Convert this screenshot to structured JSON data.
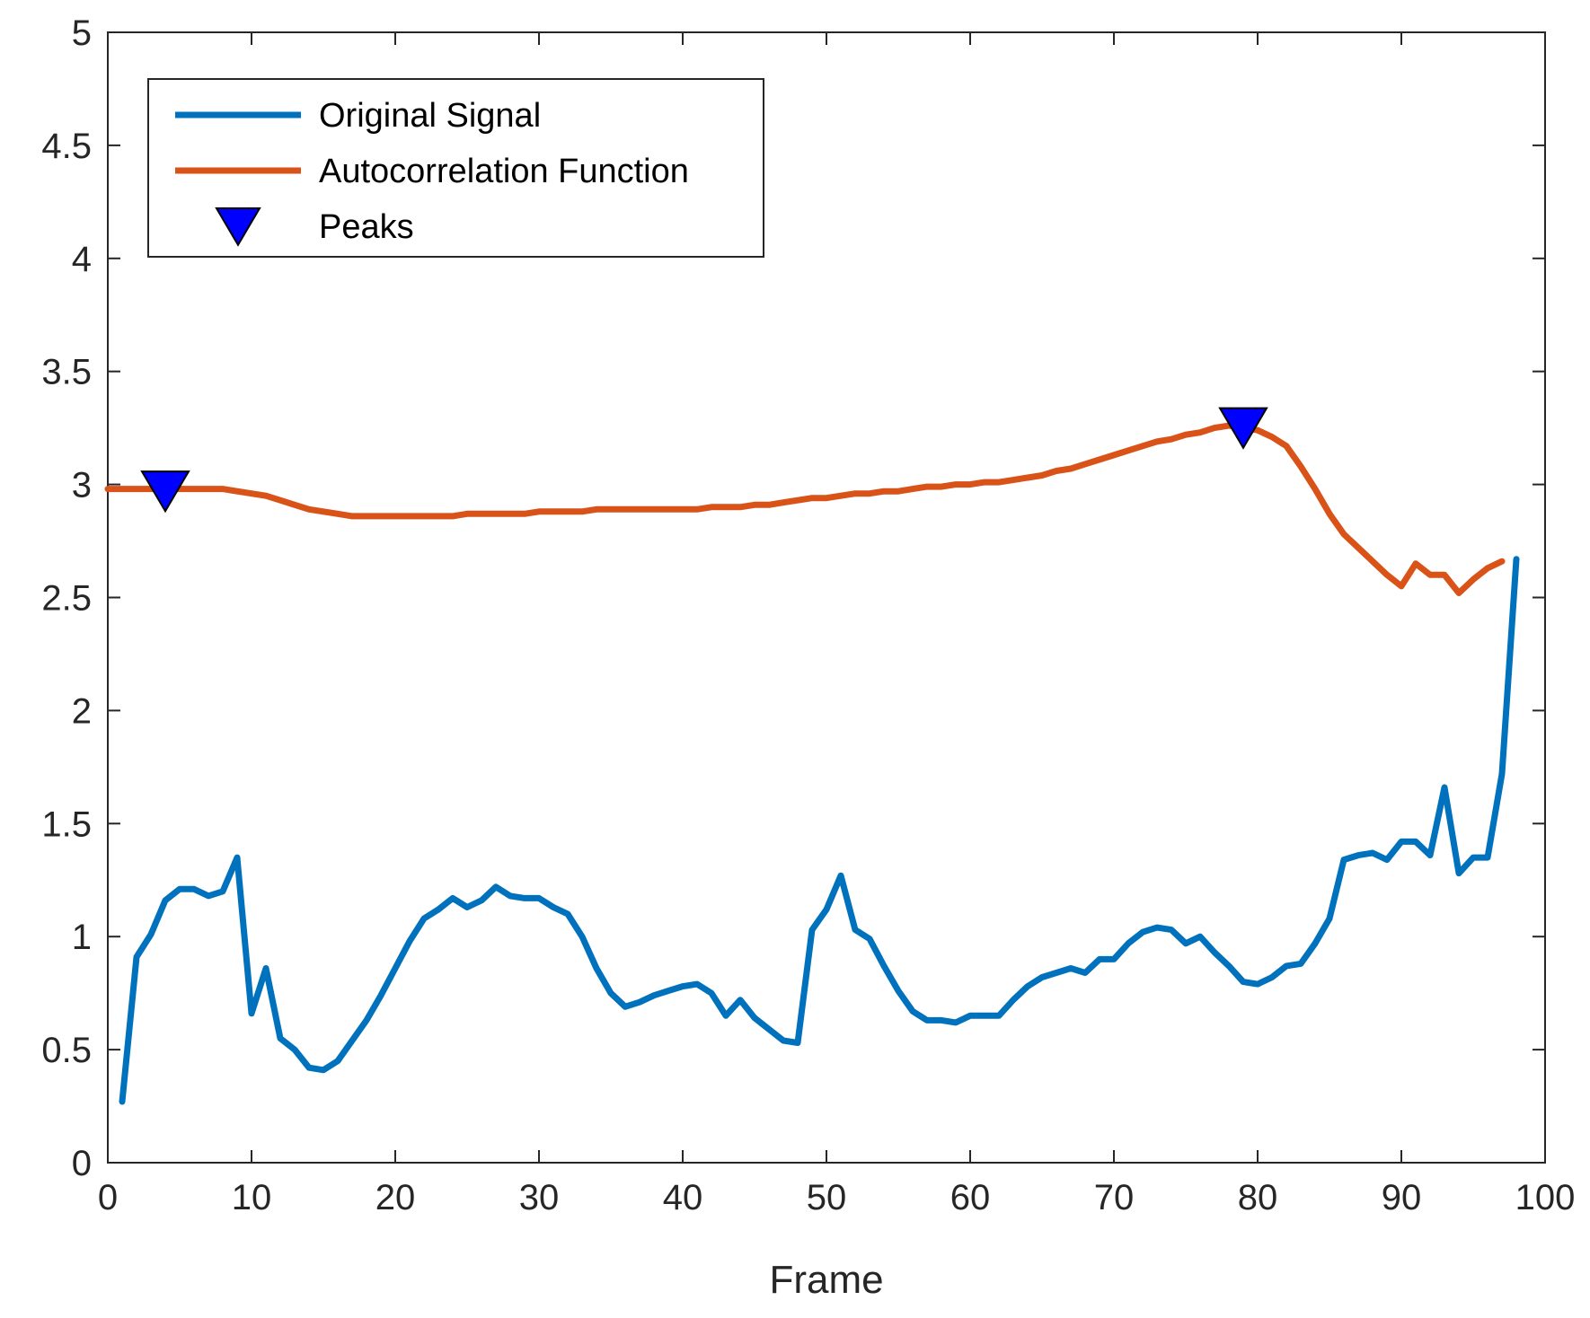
{
  "chart_data": {
    "type": "line",
    "title": "",
    "xlabel": "Frame",
    "ylabel": "",
    "xlim": [
      0,
      100
    ],
    "ylim": [
      0,
      5
    ],
    "xticks": [
      0,
      10,
      20,
      30,
      40,
      50,
      60,
      70,
      80,
      90,
      100
    ],
    "xtick_labels": [
      "0",
      "10",
      "20",
      "30",
      "40",
      "50",
      "60",
      "70",
      "80",
      "90",
      "100"
    ],
    "yticks": [
      0,
      0.5,
      1,
      1.5,
      2,
      2.5,
      3,
      3.5,
      4,
      4.5,
      5
    ],
    "ytick_labels": [
      "0",
      "0.5",
      "1",
      "1.5",
      "2",
      "2.5",
      "3",
      "3.5",
      "4",
      "4.5",
      "5"
    ],
    "grid": false,
    "legend_position": "top-left",
    "series": [
      {
        "name": "Original Signal",
        "color": "#0072BD",
        "x": [
          1,
          2,
          3,
          4,
          5,
          6,
          7,
          8,
          9,
          10,
          11,
          12,
          13,
          14,
          15,
          16,
          17,
          18,
          19,
          20,
          21,
          22,
          23,
          24,
          25,
          26,
          27,
          28,
          29,
          30,
          31,
          32,
          33,
          34,
          35,
          36,
          37,
          38,
          39,
          40,
          41,
          42,
          43,
          44,
          45,
          46,
          47,
          48,
          49,
          50,
          51,
          52,
          53,
          54,
          55,
          56,
          57,
          58,
          59,
          60,
          61,
          62,
          63,
          64,
          65,
          66,
          67,
          68,
          69,
          70,
          71,
          72,
          73,
          74,
          75,
          76,
          77,
          78,
          79,
          80,
          81,
          82,
          83,
          84,
          85,
          86,
          87,
          88,
          89,
          90,
          91,
          92,
          93,
          94,
          95,
          96,
          97,
          98
        ],
        "y": [
          0.27,
          0.91,
          1.01,
          1.16,
          1.21,
          1.21,
          1.18,
          1.2,
          1.35,
          0.66,
          0.86,
          0.55,
          0.5,
          0.42,
          0.41,
          0.45,
          0.54,
          0.63,
          0.74,
          0.86,
          0.98,
          1.08,
          1.12,
          1.17,
          1.13,
          1.16,
          1.22,
          1.18,
          1.17,
          1.17,
          1.13,
          1.1,
          1.0,
          0.86,
          0.75,
          0.69,
          0.71,
          0.74,
          0.76,
          0.78,
          0.79,
          0.75,
          0.65,
          0.72,
          0.64,
          0.59,
          0.54,
          0.53,
          1.03,
          1.12,
          1.27,
          1.03,
          0.99,
          0.87,
          0.76,
          0.67,
          0.63,
          0.63,
          0.62,
          0.65,
          0.65,
          0.65,
          0.72,
          0.78,
          0.82,
          0.84,
          0.86,
          0.84,
          0.9,
          0.9,
          0.97,
          1.02,
          1.04,
          1.03,
          0.97,
          1.0,
          0.93,
          0.87,
          0.8,
          0.79,
          0.82,
          0.87,
          0.88,
          0.97,
          1.08,
          1.34,
          1.36,
          1.37,
          1.34,
          1.42,
          1.42,
          1.36,
          1.66,
          1.28,
          1.35,
          1.35,
          1.72,
          2.67
        ]
      },
      {
        "name": "Autocorrelation Function",
        "color": "#D95319",
        "x": [
          0,
          1,
          2,
          3,
          4,
          5,
          6,
          7,
          8,
          9,
          10,
          11,
          12,
          13,
          14,
          15,
          16,
          17,
          18,
          19,
          20,
          21,
          22,
          23,
          24,
          25,
          26,
          27,
          28,
          29,
          30,
          31,
          32,
          33,
          34,
          35,
          36,
          37,
          38,
          39,
          40,
          41,
          42,
          43,
          44,
          45,
          46,
          47,
          48,
          49,
          50,
          51,
          52,
          53,
          54,
          55,
          56,
          57,
          58,
          59,
          60,
          61,
          62,
          63,
          64,
          65,
          66,
          67,
          68,
          69,
          70,
          71,
          72,
          73,
          74,
          75,
          76,
          77,
          78,
          79,
          80,
          81,
          82,
          83,
          84,
          85,
          86,
          87,
          88,
          89,
          90,
          91,
          92,
          93,
          94,
          95,
          96,
          97
        ],
        "y": [
          2.98,
          2.98,
          2.98,
          2.98,
          2.98,
          2.98,
          2.98,
          2.98,
          2.98,
          2.97,
          2.96,
          2.95,
          2.93,
          2.91,
          2.89,
          2.88,
          2.87,
          2.86,
          2.86,
          2.86,
          2.86,
          2.86,
          2.86,
          2.86,
          2.86,
          2.87,
          2.87,
          2.87,
          2.87,
          2.87,
          2.88,
          2.88,
          2.88,
          2.88,
          2.89,
          2.89,
          2.89,
          2.89,
          2.89,
          2.89,
          2.89,
          2.89,
          2.9,
          2.9,
          2.9,
          2.91,
          2.91,
          2.92,
          2.93,
          2.94,
          2.94,
          2.95,
          2.96,
          2.96,
          2.97,
          2.97,
          2.98,
          2.99,
          2.99,
          3.0,
          3.0,
          3.01,
          3.01,
          3.02,
          3.03,
          3.04,
          3.06,
          3.07,
          3.09,
          3.11,
          3.13,
          3.15,
          3.17,
          3.19,
          3.2,
          3.22,
          3.23,
          3.25,
          3.26,
          3.25,
          3.24,
          3.21,
          3.17,
          3.08,
          2.98,
          2.87,
          2.78,
          2.72,
          2.66,
          2.6,
          2.55,
          2.65,
          2.6,
          2.6,
          2.52,
          2.58,
          2.63,
          2.66
        ]
      },
      {
        "name": "Peaks",
        "color": "#0000FF",
        "marker": "triangle-down",
        "x": [
          4,
          79
        ],
        "y": [
          2.98,
          3.26
        ]
      }
    ]
  }
}
